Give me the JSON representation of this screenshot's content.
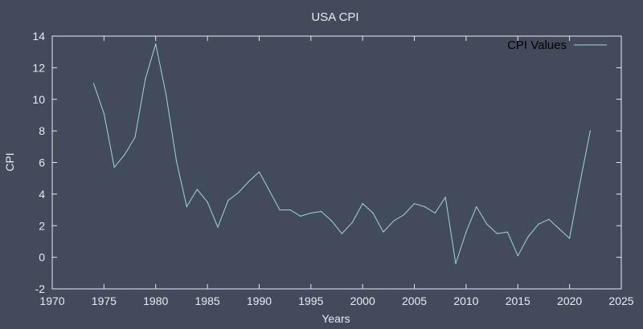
{
  "chart_data": {
    "type": "line",
    "title": "USA CPI",
    "xlabel": "Years",
    "ylabel": "CPI",
    "xlim": [
      1970,
      2025
    ],
    "ylim": [
      -2,
      14
    ],
    "xticks": [
      1970,
      1975,
      1980,
      1985,
      1990,
      1995,
      2000,
      2005,
      2010,
      2015,
      2020,
      2025
    ],
    "yticks": [
      -2,
      0,
      2,
      4,
      6,
      8,
      10,
      12,
      14
    ],
    "grid": false,
    "legend_position": "top-right",
    "series": [
      {
        "name": "CPI Values",
        "color": "#9fd8d0",
        "x": [
          1974,
          1975,
          1976,
          1977,
          1978,
          1979,
          1980,
          1981,
          1982,
          1983,
          1984,
          1985,
          1986,
          1987,
          1988,
          1989,
          1990,
          1991,
          1992,
          1993,
          1994,
          1995,
          1996,
          1997,
          1998,
          1999,
          2000,
          2001,
          2002,
          2003,
          2004,
          2005,
          2006,
          2007,
          2008,
          2009,
          2010,
          2011,
          2012,
          2013,
          2014,
          2015,
          2016,
          2017,
          2018,
          2019,
          2020,
          2021,
          2022
        ],
        "values": [
          11.0,
          9.1,
          5.7,
          6.5,
          7.6,
          11.3,
          13.5,
          10.3,
          6.1,
          3.2,
          4.3,
          3.5,
          1.9,
          3.6,
          4.1,
          4.8,
          5.4,
          4.2,
          3.0,
          3.0,
          2.6,
          2.8,
          2.9,
          2.3,
          1.5,
          2.2,
          3.4,
          2.8,
          1.6,
          2.3,
          2.7,
          3.4,
          3.2,
          2.8,
          3.8,
          -0.4,
          1.6,
          3.2,
          2.1,
          1.5,
          1.6,
          0.1,
          1.3,
          2.1,
          2.4,
          1.8,
          1.2,
          4.7,
          8.0
        ]
      }
    ]
  },
  "colors": {
    "background": "#424a5c",
    "axis": "#e8ebf0",
    "line": "#9fd8d0",
    "legend_text": "#000000"
  }
}
